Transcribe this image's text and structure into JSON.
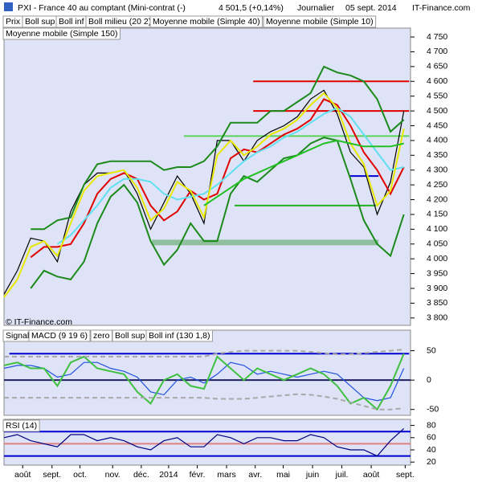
{
  "header": {
    "title": "PXI - France 40 au comptant (Mini-contrat (-)",
    "quote": "4 501,5 (+0,14%)",
    "period": "Journalier",
    "date": "05 sept. 2014",
    "site": "IT-Finance.com"
  },
  "chart_data": [
    {
      "type": "line",
      "annotation": "© IT-Finance.com",
      "x": [
        0,
        1,
        2,
        3,
        4,
        5,
        6,
        7,
        8,
        9,
        10,
        11,
        12,
        13,
        14,
        15,
        16,
        17,
        18,
        19,
        20,
        21,
        22,
        23,
        24,
        25,
        26,
        27,
        28,
        29,
        30
      ],
      "xlim": [
        0,
        30.5
      ],
      "ylim": [
        3775,
        4780
      ],
      "yticks": [
        {
          "value": 3800,
          "label": "3 800"
        },
        {
          "value": 3850,
          "label": "3 850"
        },
        {
          "value": 3900,
          "label": "3 900"
        },
        {
          "value": 3950,
          "label": "3 950"
        },
        {
          "value": 4000,
          "label": "4 000"
        },
        {
          "value": 4050,
          "label": "4 050"
        },
        {
          "value": 4100,
          "label": "4 100"
        },
        {
          "value": 4150,
          "label": "4 150"
        },
        {
          "value": 4200,
          "label": "4 200"
        },
        {
          "value": 4250,
          "label": "4 250"
        },
        {
          "value": 4300,
          "label": "4 300"
        },
        {
          "value": 4350,
          "label": "4 350"
        },
        {
          "value": 4400,
          "label": "4 400"
        },
        {
          "value": 4450,
          "label": "4 450"
        },
        {
          "value": 4500,
          "label": "4 500"
        },
        {
          "value": 4550,
          "label": "4 550"
        },
        {
          "value": 4600,
          "label": "4 600"
        },
        {
          "value": 4650,
          "label": "4 650"
        },
        {
          "value": 4700,
          "label": "4 700"
        },
        {
          "value": 4750,
          "label": "4 750"
        }
      ],
      "series": [
        {
          "name": "Prix",
          "color": "#000000",
          "values": [
            3880,
            3960,
            4070,
            4060,
            3990,
            4160,
            4250,
            4290,
            4290,
            4300,
            4220,
            4100,
            4190,
            4280,
            4220,
            4120,
            4400,
            4400,
            4330,
            4400,
            4430,
            4450,
            4480,
            4540,
            4570,
            4490,
            4360,
            4310,
            4150,
            4260,
            4500
          ]
        },
        {
          "name": "Boll sup",
          "color": "#1a8a1a",
          "values": [
            null,
            null,
            4100,
            4100,
            4130,
            4140,
            4250,
            4320,
            4330,
            4330,
            4330,
            4330,
            4300,
            4310,
            4310,
            4330,
            4380,
            4460,
            4460,
            4460,
            4500,
            4500,
            4530,
            4560,
            4650,
            4630,
            4620,
            4600,
            4540,
            4430,
            4470
          ]
        },
        {
          "name": "Boll inf",
          "color": "#1a8a1a",
          "values": [
            null,
            null,
            3900,
            3960,
            3940,
            3930,
            3990,
            4120,
            4210,
            4250,
            4190,
            4060,
            3980,
            4030,
            4120,
            4060,
            4060,
            4220,
            4280,
            4260,
            4300,
            4340,
            4350,
            4390,
            4410,
            4400,
            4270,
            4130,
            4050,
            4010,
            4150
          ]
        },
        {
          "name": "Boll milieu (20 2)",
          "color": "#e00000",
          "values": [
            null,
            null,
            4005,
            4040,
            4040,
            4050,
            4120,
            4220,
            4270,
            4290,
            4270,
            4180,
            4130,
            4160,
            4230,
            4200,
            4220,
            4340,
            4370,
            4360,
            4390,
            4420,
            4440,
            4470,
            4540,
            4520,
            4450,
            4360,
            4300,
            4220,
            4310
          ]
        },
        {
          "name": "Moyenne mobile (Simple 40)",
          "color": "#60e0f0",
          "values": [
            null,
            null,
            null,
            null,
            4050,
            4080,
            4130,
            4180,
            4240,
            4270,
            4270,
            4260,
            4220,
            4200,
            4210,
            4220,
            4250,
            4290,
            4330,
            4360,
            4380,
            4410,
            4430,
            4460,
            4490,
            4510,
            4480,
            4420,
            4360,
            4300,
            4310
          ]
        },
        {
          "name": "Moyenne mobile (Simple 10)",
          "color": "#e8e800",
          "values": [
            3870,
            3930,
            4040,
            4060,
            4010,
            4120,
            4230,
            4280,
            4290,
            4300,
            4240,
            4130,
            4170,
            4260,
            4230,
            4140,
            4350,
            4400,
            4350,
            4380,
            4420,
            4440,
            4470,
            4520,
            4560,
            4510,
            4390,
            4320,
            4180,
            4230,
            4440
          ]
        },
        {
          "name": "Moyenne mobile (Simple 150)",
          "color": "#22c022",
          "values": [
            null,
            null,
            null,
            null,
            null,
            null,
            null,
            null,
            null,
            null,
            null,
            null,
            null,
            null,
            null,
            4180,
            4210,
            4240,
            4270,
            4290,
            4310,
            4330,
            4350,
            4370,
            4390,
            4400,
            4390,
            4380,
            4380,
            4380,
            4390
          ]
        }
      ],
      "levels": [
        {
          "value": 4600,
          "color": "#e00000",
          "x": [
            18.7,
            30.4
          ]
        },
        {
          "value": 4500,
          "color": "#e00000",
          "x": [
            18.7,
            30.4
          ]
        },
        {
          "value": 4415,
          "color": "#5ad45a",
          "x": [
            13.5,
            30.4
          ]
        },
        {
          "value": 4180,
          "color": "#22b022",
          "x": [
            17.3,
            27.9
          ]
        },
        {
          "value": 4280,
          "color": "#0000d0",
          "x": [
            25.9,
            28.1
          ]
        },
        {
          "value": 4055,
          "color": "#8fbf9f",
          "x": [
            11.1,
            28.1
          ]
        }
      ]
    },
    {
      "type": "line",
      "x": [
        0,
        1,
        2,
        3,
        4,
        5,
        6,
        7,
        8,
        9,
        10,
        11,
        12,
        13,
        14,
        15,
        16,
        17,
        18,
        19,
        20,
        21,
        22,
        23,
        24,
        25,
        26,
        27,
        28,
        29,
        30
      ],
      "xlim": [
        0,
        30.5
      ],
      "ylim": [
        -60,
        85
      ],
      "yticks": [
        -50,
        0,
        50
      ],
      "series": [
        {
          "name": "Signal",
          "color": "#2050e0",
          "values": [
            20,
            25,
            25,
            20,
            5,
            10,
            30,
            30,
            20,
            15,
            5,
            -20,
            -25,
            0,
            5,
            -5,
            10,
            30,
            25,
            10,
            15,
            10,
            5,
            10,
            15,
            10,
            -10,
            -30,
            -35,
            -30,
            20
          ]
        },
        {
          "name": "MACD (9 19 6)",
          "color": "#40c040",
          "values": [
            25,
            30,
            20,
            20,
            -10,
            30,
            40,
            20,
            15,
            10,
            -20,
            -40,
            0,
            10,
            -10,
            -15,
            40,
            20,
            0,
            20,
            10,
            0,
            10,
            20,
            10,
            -10,
            -40,
            -30,
            -50,
            -10,
            45
          ]
        },
        {
          "name": "Boll sup",
          "color": "#a8a8a8",
          "values": [
            40,
            40,
            40,
            40,
            40,
            40,
            40,
            40,
            40,
            40,
            40,
            40,
            40,
            40,
            40,
            40,
            45,
            48,
            50,
            50,
            50,
            50,
            50,
            48,
            46,
            44,
            44,
            46,
            48,
            50,
            52
          ]
        },
        {
          "name": "Boll inf (130 1,8)",
          "color": "#a8a8a8",
          "values": [
            -30,
            -30,
            -30,
            -30,
            -30,
            -30,
            -30,
            -30,
            -30,
            -30,
            -30,
            -30,
            -30,
            -30,
            -30,
            -30,
            -32,
            -32,
            -32,
            -30,
            -28,
            -26,
            -24,
            -25,
            -28,
            -32,
            -38,
            -44,
            -50,
            -50,
            -48
          ]
        }
      ],
      "levels": [
        {
          "name": "zero",
          "value": 0,
          "color": "#202060",
          "x": [
            0,
            30.5
          ]
        },
        {
          "value": 45,
          "color": "#0000d0",
          "x": [
            0.4,
            30.4
          ]
        }
      ]
    },
    {
      "type": "line",
      "x": [
        0,
        1,
        2,
        3,
        4,
        5,
        6,
        7,
        8,
        9,
        10,
        11,
        12,
        13,
        14,
        15,
        16,
        17,
        18,
        19,
        20,
        21,
        22,
        23,
        24,
        25,
        26,
        27,
        28,
        29,
        30
      ],
      "xlim": [
        0,
        30.5
      ],
      "ylim": [
        15,
        90
      ],
      "yticks": [
        20,
        40,
        60,
        80
      ],
      "xticks": [
        {
          "value": 1.4,
          "label": "août"
        },
        {
          "value": 3.6,
          "label": "sept."
        },
        {
          "value": 5.7,
          "label": "oct."
        },
        {
          "value": 8.15,
          "label": "nov."
        },
        {
          "value": 10.3,
          "label": "déc."
        },
        {
          "value": 12.35,
          "label": "2014"
        },
        {
          "value": 14.5,
          "label": "févr."
        },
        {
          "value": 16.7,
          "label": "mars"
        },
        {
          "value": 18.85,
          "label": "avr."
        },
        {
          "value": 20.95,
          "label": "mai"
        },
        {
          "value": 23.15,
          "label": "juin"
        },
        {
          "value": 25.35,
          "label": "juil."
        },
        {
          "value": 27.55,
          "label": "août"
        },
        {
          "value": 30.1,
          "label": "sept."
        }
      ],
      "series": [
        {
          "name": "RSI (14)",
          "color": "#000080",
          "values": [
            60,
            65,
            55,
            50,
            45,
            65,
            65,
            55,
            60,
            55,
            45,
            40,
            55,
            60,
            45,
            45,
            65,
            60,
            50,
            60,
            60,
            55,
            55,
            65,
            60,
            45,
            40,
            40,
            30,
            55,
            75
          ]
        }
      ],
      "levels": [
        {
          "value": 70,
          "color": "#0000d0",
          "x": [
            0,
            30.5
          ]
        },
        {
          "value": 50,
          "color": "#e08080",
          "x": [
            0,
            30.5
          ]
        },
        {
          "value": 30,
          "color": "#0000d0",
          "x": [
            0,
            30.5
          ]
        }
      ]
    }
  ]
}
